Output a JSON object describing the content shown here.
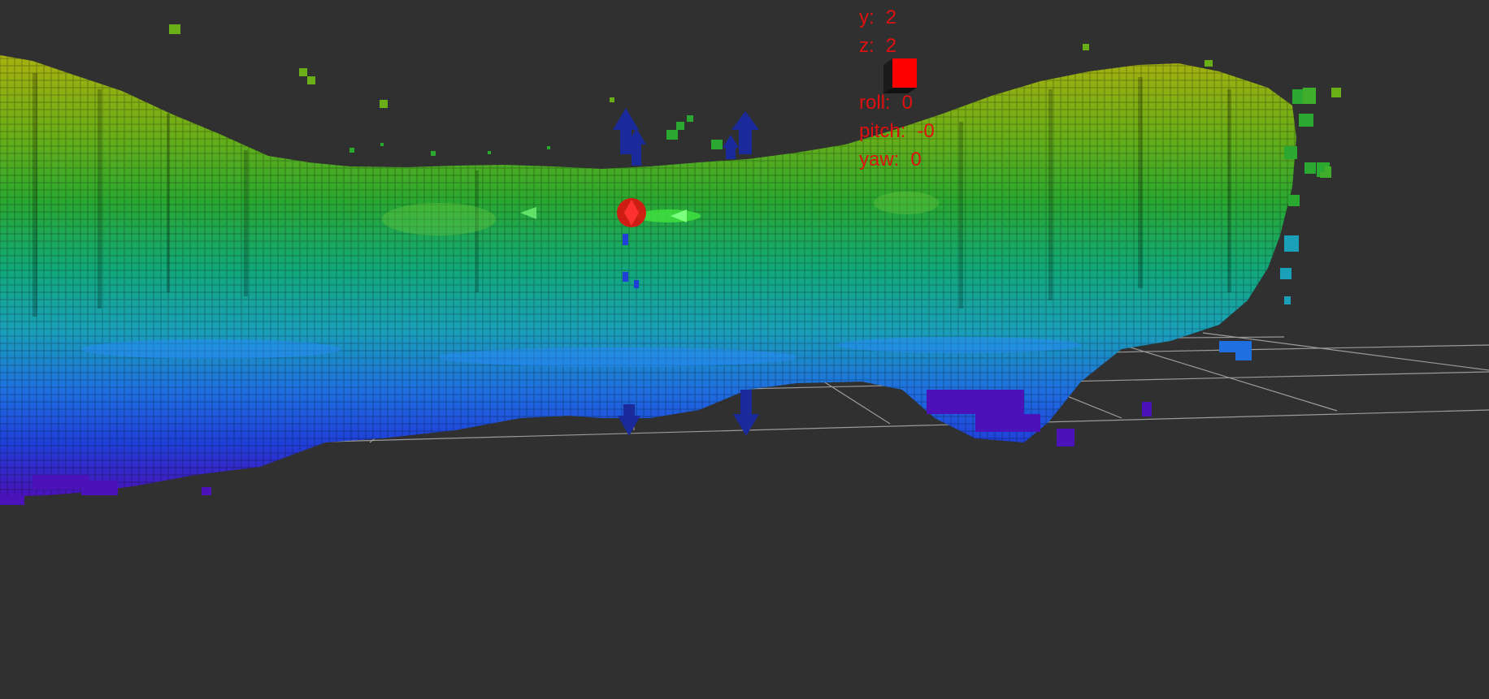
{
  "view": {
    "background": "#303030",
    "grid_color": "#9a9a9a",
    "marker_color": "#ff0000",
    "arrow_color": "#1a2a9a",
    "height_colormap": [
      "#4a12b8",
      "#1f3fd8",
      "#1f6fe0",
      "#1aa0b8",
      "#12a878",
      "#2aa830",
      "#6aae18",
      "#a8b010"
    ]
  },
  "pose_readout": {
    "y_label": "y:",
    "y_value": "2",
    "z_label": "z:",
    "z_value": "2",
    "roll_label": "roll:",
    "roll_value": "0",
    "pitch_label": "pitch:",
    "pitch_value": "-0",
    "yaw_label": "yaw:",
    "yaw_value": "0"
  },
  "icons": {
    "marker": "red-cube-icon",
    "arrows": "interactive-marker-arrow-icon"
  }
}
